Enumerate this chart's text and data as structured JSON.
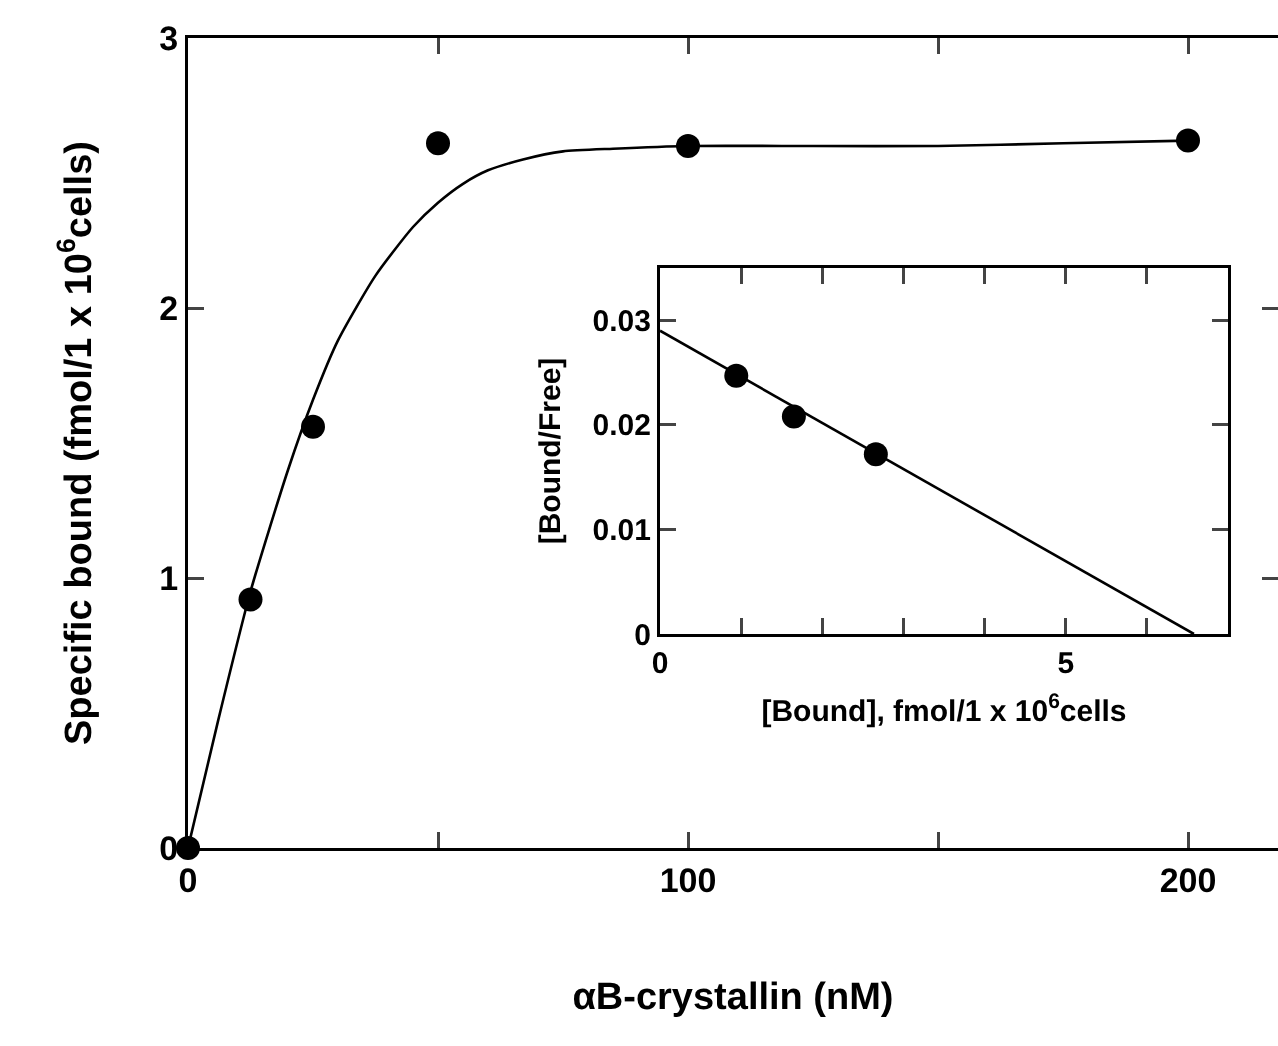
{
  "chart_data": [
    {
      "type": "scatter",
      "xlabel": "αB-crystallin (nM)",
      "ylabel": "Specific bound (fmol/1 x 10$^{6}$cells)",
      "xlim": [
        0,
        218
      ],
      "xticks": [
        0,
        {
          "value": 50,
          "label": null
        },
        100,
        {
          "value": 150,
          "label": null
        },
        200
      ],
      "ylim": [
        0,
        3
      ],
      "yticks": [
        0,
        1,
        2,
        3
      ],
      "marker": "circle",
      "series": [
        {
          "color": "#000000",
          "x": [
            0,
            12.5,
            25,
            50,
            100,
            200
          ],
          "values": [
            0,
            0.92,
            1.56,
            2.61,
            2.6,
            2.62
          ]
        },
        {
          "type": "line",
          "marker": "none",
          "color": "#000000",
          "x": [
            0,
            6,
            12.5,
            20,
            25,
            30,
            37.5,
            45,
            50,
            55,
            60,
            67,
            75,
            85,
            100,
            125,
            150,
            175,
            200
          ],
          "values": [
            0,
            0.47,
            0.95,
            1.4,
            1.66,
            1.88,
            2.12,
            2.3,
            2.39,
            2.46,
            2.51,
            2.55,
            2.58,
            2.59,
            2.6,
            2.6,
            2.6,
            2.61,
            2.62
          ]
        }
      ]
    },
    {
      "type": "scatter",
      "xlabel": "[Bound], fmol/1 x 10$^{6}$cells",
      "ylabel": "[Bound/Free]",
      "xlim": [
        0,
        7
      ],
      "xticks": [
        0,
        {
          "value": 1,
          "label": null
        },
        {
          "value": 2,
          "label": null
        },
        {
          "value": 3,
          "label": null
        },
        {
          "value": 4,
          "label": null
        },
        5,
        {
          "value": 6,
          "label": null
        }
      ],
      "ylim": [
        0,
        0.035
      ],
      "yticks": [
        0,
        0.01,
        0.02,
        0.03
      ],
      "marker": "circle",
      "series": [
        {
          "color": "#000000",
          "x": [
            0.94,
            1.65,
            2.66
          ],
          "values": [
            0.0247,
            0.0208,
            0.0172
          ]
        },
        {
          "type": "line",
          "marker": "none",
          "color": "#000000",
          "x": [
            0,
            6.58
          ],
          "values": [
            0.029,
            0
          ]
        }
      ]
    }
  ]
}
